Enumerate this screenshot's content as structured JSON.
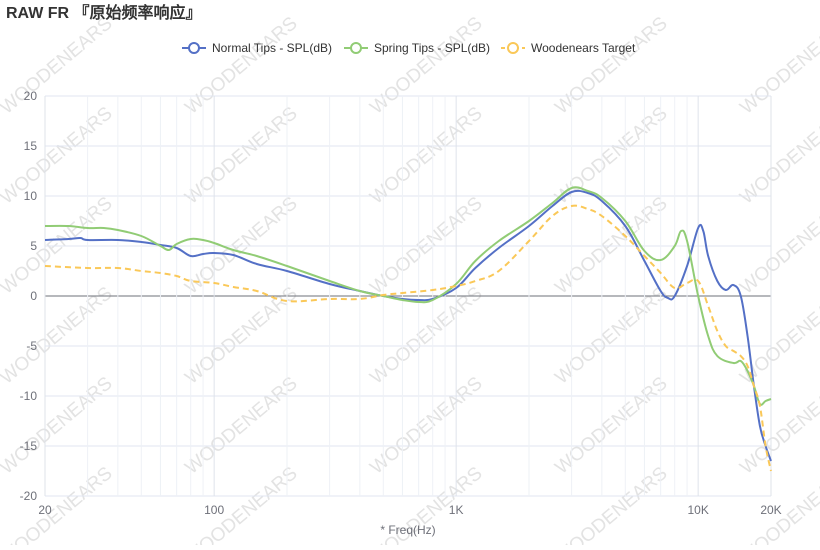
{
  "chart_data": {
    "type": "line",
    "title": "RAW FR 『原始频率响应』",
    "x_label": "* Freq(Hz)",
    "watermark": "WOODENEARS",
    "xscale": "log",
    "xlim": [
      20,
      20000
    ],
    "ylim": [
      -20,
      20
    ],
    "grid": true,
    "xticks": [
      {
        "value": 20,
        "label": "20"
      },
      {
        "value": 100,
        "label": "100"
      },
      {
        "value": 1000,
        "label": "1K"
      },
      {
        "value": 10000,
        "label": "10K"
      },
      {
        "value": 20000,
        "label": "20K"
      }
    ],
    "x_minor_ticks": [
      30,
      40,
      50,
      60,
      70,
      80,
      90,
      200,
      300,
      400,
      500,
      600,
      700,
      800,
      900,
      2000,
      3000,
      4000,
      5000,
      6000,
      7000,
      8000,
      9000
    ],
    "yticks": [
      -20,
      -15,
      -10,
      -5,
      0,
      5,
      10,
      15,
      20
    ],
    "series": [
      {
        "name": "Normal Tips - SPL(dB)",
        "color": "#5470c6",
        "dashed": false,
        "x": [
          20,
          25,
          28,
          30,
          40,
          50,
          60,
          70,
          80,
          90,
          100,
          120,
          150,
          200,
          300,
          400,
          500,
          600,
          700,
          800,
          1000,
          1200,
          1500,
          2000,
          2500,
          3000,
          3500,
          4000,
          5000,
          6000,
          7000,
          7500,
          8000,
          9000,
          10000,
          10500,
          11000,
          12000,
          13000,
          14000,
          15000,
          16000,
          17000,
          18000,
          19000,
          20000
        ],
        "values": [
          5.6,
          5.7,
          5.8,
          5.6,
          5.6,
          5.4,
          5.1,
          4.8,
          4.0,
          4.2,
          4.3,
          4.1,
          3.2,
          2.5,
          1.2,
          0.5,
          0,
          -0.3,
          -0.4,
          -0.3,
          0.8,
          2.8,
          4.8,
          7,
          9,
          10.4,
          10.3,
          9.5,
          7,
          3.5,
          0.5,
          -0.2,
          0,
          3,
          6.8,
          6.5,
          4,
          1.5,
          0.6,
          1.1,
          0,
          -4,
          -9,
          -13,
          -15,
          -16.5
        ]
      },
      {
        "name": "Spring Tips - SPL(dB)",
        "color": "#91cc75",
        "dashed": false,
        "x": [
          20,
          25,
          30,
          35,
          40,
          50,
          60,
          65,
          70,
          80,
          90,
          100,
          120,
          150,
          200,
          300,
          400,
          500,
          600,
          700,
          800,
          1000,
          1200,
          1500,
          2000,
          2500,
          3000,
          3500,
          4000,
          5000,
          6000,
          7000,
          8000,
          8500,
          9000,
          10000,
          11000,
          12000,
          14000,
          15000,
          16000,
          17000,
          18000,
          19000,
          20000
        ],
        "values": [
          7.0,
          7.0,
          6.8,
          6.8,
          6.6,
          6.0,
          5.0,
          4.6,
          5.2,
          5.7,
          5.6,
          5.3,
          4.6,
          4.0,
          3.0,
          1.5,
          0.5,
          0,
          -0.4,
          -0.6,
          -0.4,
          1.2,
          3.5,
          5.5,
          7.5,
          9.3,
          10.8,
          10.5,
          9.8,
          7.5,
          4.5,
          3.6,
          5,
          6.5,
          5.5,
          0,
          -4,
          -6,
          -6.7,
          -6.5,
          -7.5,
          -9,
          -10.8,
          -10.5,
          -10.3
        ]
      },
      {
        "name": "Woodenears Target",
        "color": "#fac858",
        "dashed": true,
        "x": [
          20,
          30,
          40,
          50,
          60,
          70,
          80,
          100,
          120,
          150,
          200,
          300,
          400,
          500,
          600,
          800,
          1000,
          1200,
          1500,
          2000,
          2500,
          3000,
          3500,
          4000,
          5000,
          6000,
          7000,
          8000,
          9000,
          10000,
          11000,
          12000,
          13000,
          14000,
          15000,
          16000,
          17000,
          18000,
          19000,
          20000
        ],
        "values": [
          3.0,
          2.8,
          2.8,
          2.5,
          2.3,
          2.0,
          1.5,
          1.3,
          0.9,
          0.5,
          -0.5,
          -0.3,
          -0.3,
          0.1,
          0.3,
          0.6,
          1.0,
          1.5,
          2.5,
          5.5,
          8.0,
          9.0,
          8.7,
          8.0,
          6,
          4,
          2.3,
          0.8,
          1.3,
          1.5,
          -1,
          -3.5,
          -5,
          -5.5,
          -6,
          -7,
          -9,
          -11,
          -15,
          -17.5
        ]
      }
    ]
  }
}
